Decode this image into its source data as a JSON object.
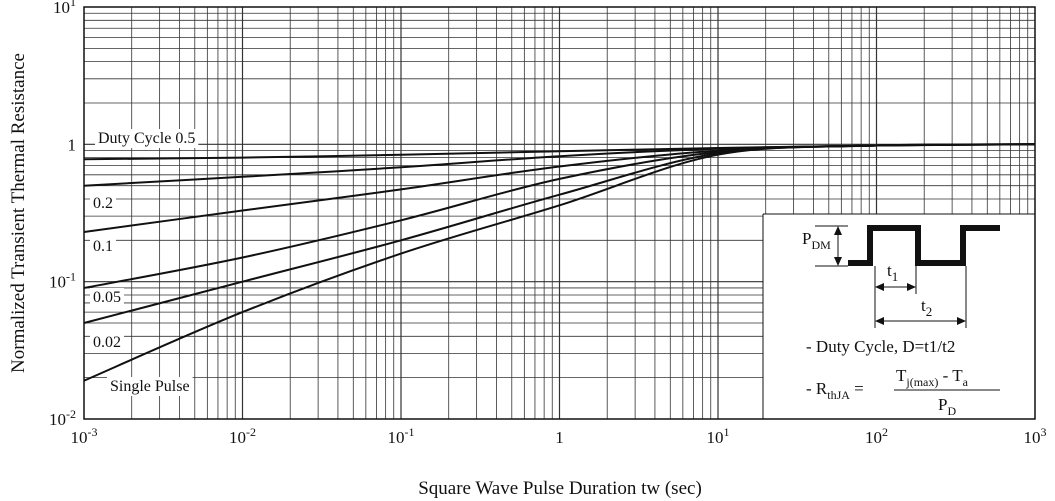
{
  "chart_data": {
    "type": "line",
    "title": "",
    "xlabel": "Square Wave Pulse Duration tw (sec)",
    "ylabel": "Normalized Transient Thermal Resistance",
    "xscale": "log",
    "yscale": "log",
    "xlim": [
      0.001,
      1000
    ],
    "ylim": [
      0.01,
      10
    ],
    "grid": true,
    "x_tick_labels": [
      {
        "base": "10",
        "exp": "-3"
      },
      {
        "base": "10",
        "exp": "-2"
      },
      {
        "base": "10",
        "exp": "-1"
      },
      {
        "base": "1",
        "exp": ""
      },
      {
        "base": "10",
        "exp": "1"
      },
      {
        "base": "10",
        "exp": "2"
      },
      {
        "base": "10",
        "exp": "3"
      }
    ],
    "y_tick_labels": [
      {
        "base": "10",
        "exp": "-2"
      },
      {
        "base": "10",
        "exp": "-1"
      },
      {
        "base": "1",
        "exp": ""
      },
      {
        "base": "10",
        "exp": "1"
      }
    ],
    "series": [
      {
        "name": "Duty Cycle 0.5",
        "x": [
          0.001,
          0.01,
          0.1,
          1,
          10,
          100,
          1000
        ],
        "y": [
          0.78,
          0.8,
          0.84,
          0.89,
          0.94,
          0.98,
          1.0
        ]
      },
      {
        "name": "0.2",
        "x": [
          0.001,
          0.01,
          0.1,
          1,
          10,
          100,
          1000
        ],
        "y": [
          0.5,
          0.58,
          0.68,
          0.82,
          0.93,
          0.98,
          1.0
        ]
      },
      {
        "name": "0.1",
        "x": [
          0.001,
          0.01,
          0.1,
          1,
          10,
          100,
          1000
        ],
        "y": [
          0.23,
          0.33,
          0.47,
          0.69,
          0.9,
          0.98,
          1.0
        ]
      },
      {
        "name": "0.05",
        "x": [
          0.001,
          0.01,
          0.1,
          1,
          10,
          100,
          1000
        ],
        "y": [
          0.09,
          0.15,
          0.28,
          0.56,
          0.88,
          0.98,
          1.0
        ]
      },
      {
        "name": "0.02",
        "x": [
          0.001,
          0.01,
          0.1,
          1,
          10,
          100,
          1000
        ],
        "y": [
          0.05,
          0.1,
          0.2,
          0.43,
          0.86,
          0.98,
          1.0
        ]
      },
      {
        "name": "Single Pulse",
        "x": [
          0.001,
          0.01,
          0.1,
          1,
          10,
          100,
          1000
        ],
        "y": [
          0.019,
          0.06,
          0.16,
          0.36,
          0.84,
          0.98,
          1.0
        ]
      }
    ]
  },
  "inset": {
    "pdm_main": "P",
    "pdm_sub": "DM",
    "t1_main": "t",
    "t1_sub": "1",
    "t2_main": "t",
    "t2_sub": "2",
    "duty_cycle_text": "- Duty Cycle, D=t1/t2",
    "rth_prefix": "- R",
    "rth_sub": "thJA",
    "rth_equals": " =",
    "num_tj": "T",
    "num_tj_sub": "j(max)",
    "num_rest": " - T",
    "num_ta_sub": "a",
    "den_p": "P",
    "den_p_sub": "D"
  }
}
